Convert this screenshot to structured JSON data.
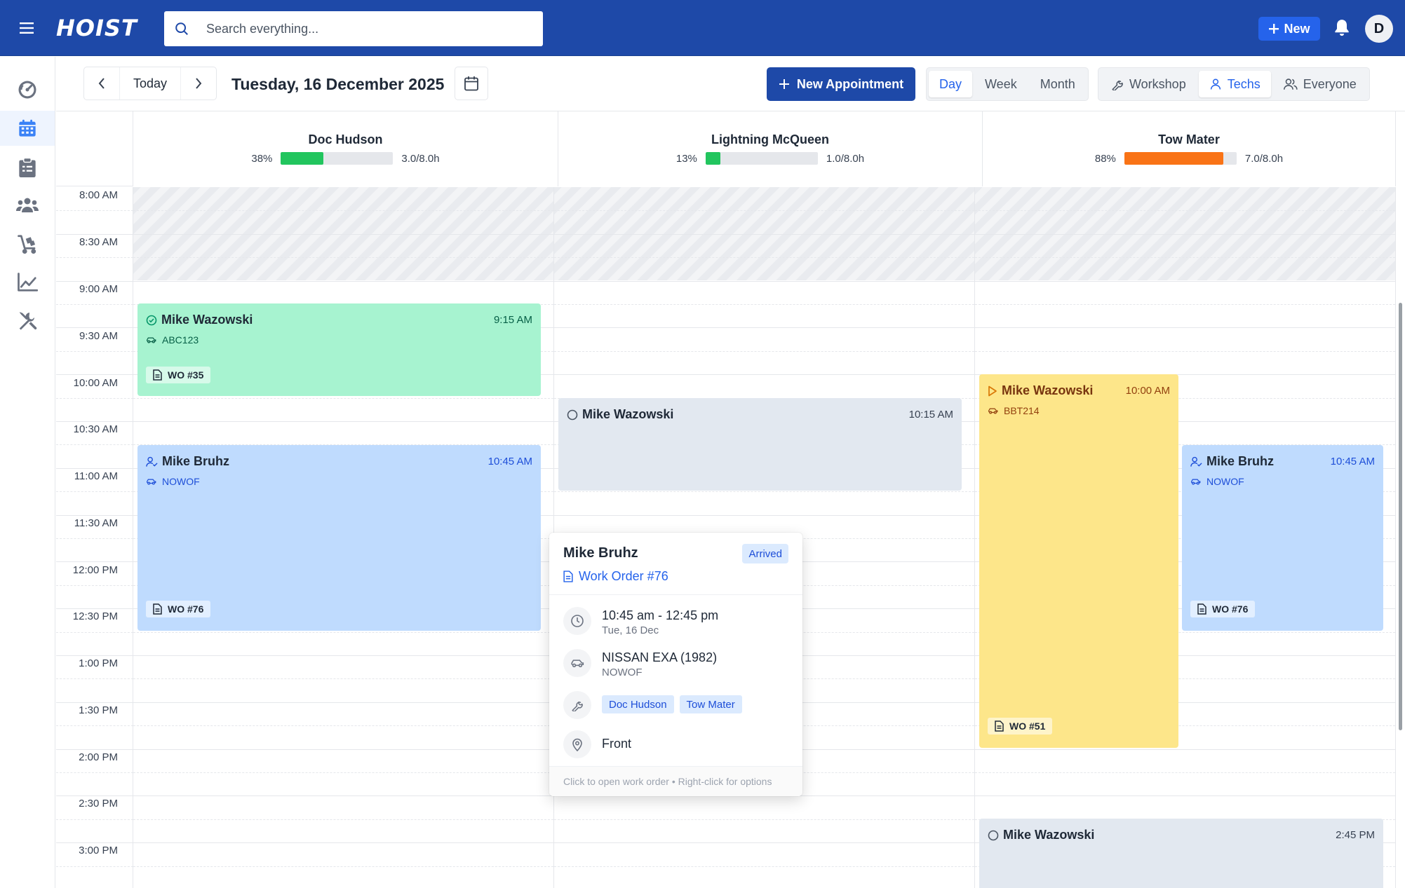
{
  "header": {
    "logo": "HOIST",
    "search_placeholder": "Search everything...",
    "new_label": "New",
    "avatar_initial": "D"
  },
  "sidebar": {
    "items": [
      {
        "icon": "dashboard-gauge-icon",
        "active": false
      },
      {
        "icon": "calendar-icon",
        "active": true
      },
      {
        "icon": "clipboard-icon",
        "active": false
      },
      {
        "icon": "people-icon",
        "active": false
      },
      {
        "icon": "parts-cart-icon",
        "active": false
      },
      {
        "icon": "reports-chart-icon",
        "active": false
      },
      {
        "icon": "tools-icon",
        "active": false
      }
    ]
  },
  "toolbar": {
    "today_label": "Today",
    "date_title": "Tuesday, 16 December 2025",
    "new_appointment_label": "New Appointment",
    "views": [
      "Day",
      "Week",
      "Month"
    ],
    "active_view": "Day",
    "groupings": [
      "Workshop",
      "Techs",
      "Everyone"
    ],
    "active_grouping": "Techs"
  },
  "technicians": [
    {
      "name": "Doc Hudson",
      "utilization_pct": "38%",
      "utilization": 0.38,
      "hours": "3.0/8.0h",
      "color": "#22c55e"
    },
    {
      "name": "Lightning McQueen",
      "utilization_pct": "13%",
      "utilization": 0.13,
      "hours": "1.0/8.0h",
      "color": "#22c55e"
    },
    {
      "name": "Tow Mater",
      "utilization_pct": "88%",
      "utilization": 0.88,
      "hours": "7.0/8.0h",
      "color": "#f97316"
    }
  ],
  "time_slots": [
    "8:00 AM",
    "8:30 AM",
    "9:00 AM",
    "9:30 AM",
    "10:00 AM",
    "10:30 AM",
    "11:00 AM",
    "11:30 AM",
    "12:00 PM",
    "12:30 PM",
    "1:00 PM",
    "1:30 PM",
    "2:00 PM",
    "2:30 PM",
    "3:00 PM"
  ],
  "appointments": [
    {
      "customer": "Mike Wazowski",
      "time": "9:15 AM",
      "plate": "ABC123",
      "work_order": "WO #35",
      "status": "completed"
    },
    {
      "customer": "Mike Bruhz",
      "time": "10:45 AM",
      "plate": "NOWOF",
      "work_order": "WO #76",
      "status": "arrived"
    },
    {
      "customer": "Mike Wazowski",
      "time": "10:15 AM",
      "status": "scheduled"
    },
    {
      "customer": "Mike Wazowski",
      "time": "10:00 AM",
      "plate": "BBT214",
      "work_order": "WO #51",
      "status": "in-progress"
    },
    {
      "customer": "Mike Bruhz",
      "time": "10:45 AM",
      "plate": "NOWOF",
      "work_order": "WO #76",
      "status": "arrived"
    },
    {
      "customer": "Mike Wazowski",
      "time": "2:45 PM",
      "status": "scheduled"
    }
  ],
  "popover": {
    "customer": "Mike Bruhz",
    "badge": "Arrived",
    "work_order_link": "Work Order #76",
    "time_range": "10:45 am - 12:45 pm",
    "date": "Tue, 16 Dec",
    "vehicle": "NISSAN EXA (1982)",
    "plate": "NOWOF",
    "techs": [
      "Doc Hudson",
      "Tow Mater"
    ],
    "location": "Front",
    "footer": "Click to open work order • Right-click for options"
  }
}
